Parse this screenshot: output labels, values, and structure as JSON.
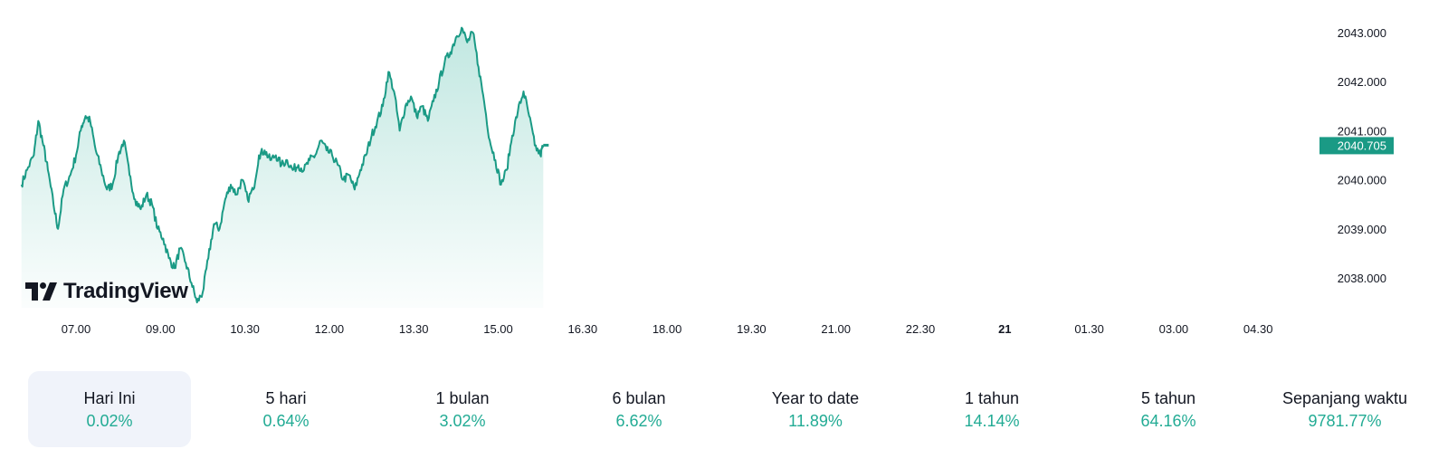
{
  "brand": {
    "logo_text": "TradingView"
  },
  "chart_data": {
    "type": "area",
    "title": "",
    "xlabel": "",
    "ylabel": "",
    "ylim": [
      2037.4,
      2043.3
    ],
    "y_ticks": [
      "2043.000",
      "2042.000",
      "2041.000",
      "2040.000",
      "2039.000",
      "2038.000"
    ],
    "x_ticks": [
      "07.00",
      "09.00",
      "10.30",
      "12.00",
      "13.30",
      "15.00",
      "16.30",
      "18.00",
      "19.30",
      "21.00",
      "22.30",
      "21",
      "01.30",
      "03.00",
      "04.30"
    ],
    "x_tick_bold": "21",
    "last_price_label": "2040.705",
    "last_price": 2040.705,
    "line_color": "#1a9a85",
    "fill_color": "#22ab94",
    "x_unit": "hours since 06.00",
    "series": [
      {
        "values": [
          [
            0.03,
            2039.9
          ],
          [
            0.13,
            2040.2
          ],
          [
            0.25,
            2040.5
          ],
          [
            0.33,
            2041.2
          ],
          [
            0.42,
            2040.7
          ],
          [
            0.5,
            2040.2
          ],
          [
            0.6,
            2039.5
          ],
          [
            0.68,
            2039.0
          ],
          [
            0.78,
            2039.8
          ],
          [
            0.9,
            2040.1
          ],
          [
            1.0,
            2040.5
          ],
          [
            1.1,
            2041.1
          ],
          [
            1.17,
            2041.3
          ],
          [
            1.25,
            2041.2
          ],
          [
            1.35,
            2040.6
          ],
          [
            1.45,
            2040.2
          ],
          [
            1.55,
            2039.8
          ],
          [
            1.65,
            2039.9
          ],
          [
            1.75,
            2040.5
          ],
          [
            1.85,
            2040.8
          ],
          [
            1.95,
            2040.1
          ],
          [
            2.05,
            2039.6
          ],
          [
            2.15,
            2039.4
          ],
          [
            2.25,
            2039.7
          ],
          [
            2.35,
            2039.5
          ],
          [
            2.45,
            2039.0
          ],
          [
            2.55,
            2038.8
          ],
          [
            2.65,
            2038.4
          ],
          [
            2.75,
            2038.2
          ],
          [
            2.85,
            2038.6
          ],
          [
            2.95,
            2038.3
          ],
          [
            3.05,
            2037.9
          ],
          [
            3.15,
            2037.5
          ],
          [
            3.25,
            2037.7
          ],
          [
            3.35,
            2038.4
          ],
          [
            3.45,
            2039.1
          ],
          [
            3.55,
            2039.0
          ],
          [
            3.65,
            2039.6
          ],
          [
            3.75,
            2039.9
          ],
          [
            3.85,
            2039.7
          ],
          [
            3.95,
            2040.0
          ],
          [
            4.05,
            2039.6
          ],
          [
            4.15,
            2039.8
          ],
          [
            4.25,
            2040.5
          ],
          [
            4.35,
            2040.6
          ],
          [
            4.45,
            2040.4
          ],
          [
            4.55,
            2040.5
          ],
          [
            4.65,
            2040.3
          ],
          [
            4.75,
            2040.4
          ],
          [
            4.85,
            2040.2
          ],
          [
            4.95,
            2040.3
          ],
          [
            5.05,
            2040.2
          ],
          [
            5.15,
            2040.4
          ],
          [
            5.25,
            2040.5
          ],
          [
            5.35,
            2040.8
          ],
          [
            5.45,
            2040.6
          ],
          [
            5.55,
            2040.5
          ],
          [
            5.65,
            2040.3
          ],
          [
            5.75,
            2040.0
          ],
          [
            5.85,
            2040.1
          ],
          [
            5.95,
            2039.8
          ],
          [
            6.05,
            2040.2
          ],
          [
            6.15,
            2040.5
          ],
          [
            6.25,
            2040.9
          ],
          [
            6.35,
            2041.2
          ],
          [
            6.45,
            2041.5
          ],
          [
            6.55,
            2042.2
          ],
          [
            6.65,
            2041.8
          ],
          [
            6.75,
            2041.0
          ],
          [
            6.85,
            2041.5
          ],
          [
            6.95,
            2041.7
          ],
          [
            7.05,
            2041.3
          ],
          [
            7.15,
            2041.5
          ],
          [
            7.25,
            2041.2
          ],
          [
            7.35,
            2041.6
          ],
          [
            7.45,
            2042.0
          ],
          [
            7.55,
            2042.4
          ],
          [
            7.65,
            2042.6
          ],
          [
            7.75,
            2042.9
          ],
          [
            7.85,
            2043.1
          ],
          [
            7.95,
            2042.8
          ],
          [
            8.05,
            2043.0
          ],
          [
            8.15,
            2042.3
          ],
          [
            8.25,
            2041.6
          ],
          [
            8.35,
            2040.8
          ],
          [
            8.45,
            2040.4
          ],
          [
            8.55,
            2039.9
          ],
          [
            8.65,
            2040.2
          ],
          [
            8.75,
            2040.9
          ],
          [
            8.85,
            2041.4
          ],
          [
            8.95,
            2041.8
          ],
          [
            9.05,
            2041.3
          ],
          [
            9.15,
            2040.7
          ],
          [
            9.25,
            2040.5
          ],
          [
            9.3,
            2040.705
          ]
        ]
      }
    ]
  },
  "periods": [
    {
      "label": "Hari Ini",
      "value": "0.02%"
    },
    {
      "label": "5 hari",
      "value": "0.64%"
    },
    {
      "label": "1 bulan",
      "value": "3.02%"
    },
    {
      "label": "6 bulan",
      "value": "6.62%"
    },
    {
      "label": "Year to date",
      "value": "11.89%"
    },
    {
      "label": "1 tahun",
      "value": "14.14%"
    },
    {
      "label": "5 tahun",
      "value": "64.16%"
    },
    {
      "label": "Sepanjang waktu",
      "value": "9781.77%"
    }
  ]
}
